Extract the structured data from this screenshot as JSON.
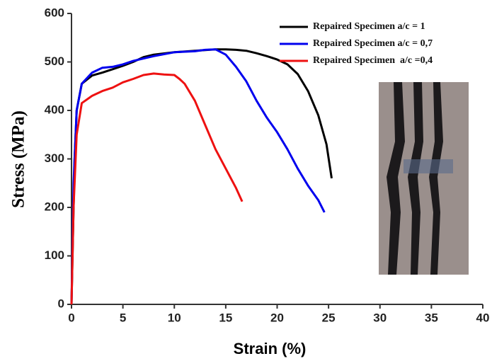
{
  "chart_data": {
    "type": "line",
    "xlabel": "Strain (%)",
    "ylabel": "Stress (MPa)",
    "xlim": [
      0,
      40
    ],
    "ylim": [
      0,
      600
    ],
    "xticks": [
      0,
      5,
      10,
      15,
      20,
      25,
      30,
      35,
      40
    ],
    "yticks": [
      0,
      100,
      200,
      300,
      400,
      500,
      600
    ],
    "legend": "upper right",
    "series": [
      {
        "name": "Repaired Specimen a/c = 1",
        "color": "#000000",
        "x": [
          0,
          0.3,
          0.5,
          1,
          2,
          3,
          4,
          5,
          6,
          7,
          8,
          10,
          12,
          14,
          15,
          16,
          17,
          18,
          19,
          20,
          21,
          22,
          23,
          24,
          24.8,
          25.3
        ],
        "values": [
          0,
          300,
          400,
          455,
          472,
          478,
          485,
          492,
          500,
          510,
          515,
          520,
          523,
          526,
          526,
          525,
          523,
          518,
          512,
          505,
          495,
          475,
          440,
          390,
          330,
          260
        ]
      },
      {
        "name": "Repaired Specimen a/c = 0,7",
        "color": "#0000ee",
        "x": [
          0,
          0.2,
          0.5,
          1,
          2,
          3,
          4,
          5,
          6,
          8,
          10,
          12,
          13,
          14,
          15,
          16,
          17,
          18,
          19,
          20,
          21,
          22,
          23,
          24,
          24.6
        ],
        "values": [
          0,
          250,
          400,
          455,
          478,
          488,
          490,
          495,
          502,
          512,
          520,
          522,
          525,
          526,
          515,
          490,
          460,
          420,
          385,
          355,
          320,
          280,
          245,
          215,
          190
        ]
      },
      {
        "name": "Repaired Specimen  a/c =0,4",
        "color": "#ee1111",
        "x": [
          0,
          0.2,
          0.5,
          1,
          2,
          3,
          4,
          5,
          6,
          7,
          8,
          9,
          10,
          10.5,
          11,
          12,
          13,
          14,
          15,
          16,
          16.6
        ],
        "values": [
          0,
          200,
          350,
          415,
          430,
          440,
          447,
          458,
          465,
          473,
          476,
          474,
          473,
          465,
          455,
          420,
          370,
          320,
          280,
          240,
          212
        ]
      }
    ]
  }
}
